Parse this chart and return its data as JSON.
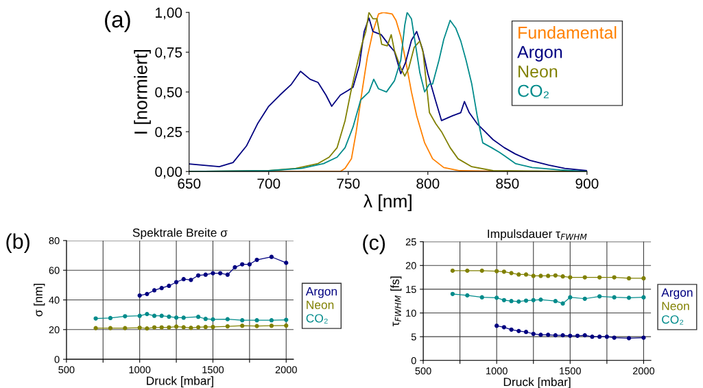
{
  "chart_data": [
    {
      "type": "line",
      "xlabel": "λ [nm]",
      "ylabel": "I [normiert]",
      "annotations": [
        "(a)"
      ],
      "xlim": [
        650,
        900
      ],
      "xticks": [
        650,
        700,
        750,
        800,
        850,
        900
      ],
      "ylim": [
        0,
        1
      ],
      "yticks": [
        {
          "value": 0,
          "label": "0,00"
        },
        {
          "value": 0.25,
          "label": "0,25"
        },
        {
          "value": 0.5,
          "label": "0,50"
        },
        {
          "value": 0.75,
          "label": "0,75"
        },
        {
          "value": 1,
          "label": "1,00"
        }
      ],
      "grid": false,
      "legend": "top right",
      "marker": "none",
      "line_style": "solid",
      "series": [
        {
          "name": "Fundamental",
          "color": "#ff8000",
          "x": [
            650,
            700,
            745,
            748,
            752,
            755,
            758.6,
            762,
            765.5,
            769,
            772,
            777.6,
            780,
            783,
            786,
            789.7,
            793,
            798,
            803,
            810,
            820,
            850,
            900
          ],
          "values": [
            0,
            0,
            0,
            0.02,
            0.08,
            0.25,
            0.5,
            0.72,
            0.88,
            0.99,
            1.0,
            0.99,
            0.95,
            0.85,
            0.7,
            0.5,
            0.35,
            0.18,
            0.08,
            0.025,
            0.005,
            0,
            0
          ]
        },
        {
          "name": "Argon",
          "color": "#000080",
          "x": [
            650,
            669,
            677.6,
            686,
            693,
            700,
            707,
            714,
            720,
            726,
            731,
            736,
            739.6,
            745,
            750,
            753,
            757,
            760,
            763,
            765.5,
            770.7,
            776,
            779,
            783,
            786,
            789.7,
            793,
            796.6,
            800,
            805,
            808.6,
            815.5,
            820.7,
            823,
            826,
            831,
            836,
            841,
            848,
            855,
            864,
            876,
            886,
            900
          ],
          "values": [
            0.047,
            0.03,
            0.056,
            0.16,
            0.3,
            0.41,
            0.48,
            0.545,
            0.63,
            0.58,
            0.56,
            0.48,
            0.41,
            0.48,
            0.51,
            0.53,
            0.67,
            0.88,
            0.965,
            0.88,
            0.86,
            0.79,
            0.755,
            0.615,
            0.685,
            0.825,
            0.88,
            0.77,
            0.615,
            0.44,
            0.32,
            0.35,
            0.37,
            0.44,
            0.37,
            0.3,
            0.25,
            0.2,
            0.15,
            0.11,
            0.07,
            0.04,
            0.02,
            0.005
          ]
        },
        {
          "name": "Neon",
          "color": "#808000",
          "x": [
            650,
            700,
            717,
            731,
            738,
            743,
            748,
            752,
            755,
            758.6,
            761,
            763,
            765.5,
            768,
            771,
            774.5,
            777,
            779,
            783,
            785.5,
            788,
            791.4,
            795,
            797,
            801,
            805,
            808.6,
            814,
            819,
            827.6,
            841,
            900
          ],
          "values": [
            0,
            0.005,
            0.02,
            0.05,
            0.09,
            0.15,
            0.32,
            0.52,
            0.65,
            0.8,
            0.88,
            1.0,
            0.96,
            0.96,
            0.8,
            0.79,
            0.86,
            0.76,
            0.65,
            0.6,
            0.65,
            0.78,
            0.82,
            0.75,
            0.37,
            0.3,
            0.25,
            0.15,
            0.08,
            0.03,
            0.005,
            0
          ]
        },
        {
          "name": "CO₂",
          "color": "#008b8b",
          "x": [
            650,
            700,
            720.7,
            734.5,
            743,
            748,
            753,
            757.8,
            763,
            766,
            769,
            774,
            779,
            783,
            785.5,
            787,
            789.7,
            791.4,
            795,
            798,
            801,
            803,
            807,
            810,
            814,
            817.6,
            820.7,
            824,
            827.6,
            831,
            834.5,
            840,
            845,
            848,
            855,
            865.5,
            883,
            900
          ],
          "values": [
            0,
            0.005,
            0.02,
            0.05,
            0.09,
            0.15,
            0.28,
            0.45,
            0.5,
            0.58,
            0.52,
            0.5,
            0.57,
            0.7,
            0.92,
            1.0,
            0.96,
            0.85,
            0.62,
            0.5,
            0.55,
            0.55,
            0.7,
            0.83,
            0.95,
            0.9,
            0.82,
            0.7,
            0.55,
            0.35,
            0.18,
            0.15,
            0.12,
            0.1,
            0.05,
            0.025,
            0.01,
            0
          ]
        }
      ]
    },
    {
      "type": "line",
      "title": "Spektrale Breite σ",
      "xlabel": "Druck [mbar]",
      "ylabel": "σ [nm]",
      "annotations": [
        "(b)"
      ],
      "xlim": [
        500,
        2050
      ],
      "xticks": [
        500,
        {
          "value": 750,
          "label": null
        },
        1000,
        {
          "value": 1250,
          "label": null
        },
        1500,
        {
          "value": 1750,
          "label": null
        },
        2000
      ],
      "ylim": [
        0,
        80
      ],
      "yticks": [
        0,
        20,
        40,
        60,
        80
      ],
      "grid": true,
      "legend": "right",
      "marker": "circle",
      "line_style": "solid",
      "series": [
        {
          "name": "Argon",
          "color": "#000080",
          "x": [
            1000,
            1050,
            1100,
            1150,
            1200,
            1250,
            1300,
            1350,
            1400,
            1450,
            1500,
            1550,
            1600,
            1650,
            1700,
            1750,
            1800,
            1900,
            2000
          ],
          "values": [
            43,
            44,
            46.5,
            48,
            49.5,
            52,
            54,
            53.5,
            56.5,
            57,
            58,
            58,
            57,
            62,
            64,
            64,
            67,
            69,
            65
          ]
        },
        {
          "name": "Neon",
          "color": "#808000",
          "x": [
            700,
            800,
            900,
            1000,
            1050,
            1100,
            1150,
            1200,
            1250,
            1300,
            1350,
            1400,
            1450,
            1500,
            1600,
            1700,
            1800,
            1900,
            2000
          ],
          "values": [
            21,
            21,
            21,
            21.3,
            20.8,
            21.5,
            21.5,
            21.5,
            22,
            21.6,
            21.2,
            21.6,
            21.8,
            21.8,
            22.2,
            22.6,
            22.4,
            22.6,
            22.7
          ]
        },
        {
          "name": "CO₂",
          "color": "#008b8b",
          "x": [
            700,
            800,
            900,
            1000,
            1050,
            1100,
            1150,
            1200,
            1250,
            1300,
            1400,
            1450,
            1500,
            1600,
            1700,
            1800,
            1900,
            2000
          ],
          "values": [
            27.5,
            27.8,
            29,
            29.3,
            30.5,
            29.3,
            29.3,
            28.7,
            28.1,
            28,
            28.6,
            27.2,
            26.9,
            27,
            26.3,
            26.3,
            26.3,
            26.6
          ]
        }
      ]
    },
    {
      "type": "line",
      "title": "Impulsdauer τ$_{FWHM}$",
      "xlabel": "Druck [mbar]",
      "ylabel": "τ$_{FWHM}$ [fs]",
      "annotations": [
        "(c)"
      ],
      "xlim": [
        500,
        2050
      ],
      "xticks": [
        500,
        {
          "value": 750,
          "label": null
        },
        1000,
        {
          "value": 1250,
          "label": null
        },
        1500,
        {
          "value": 1750,
          "label": null
        },
        2000
      ],
      "ylim": [
        0,
        25
      ],
      "yticks": [
        0,
        5,
        10,
        15,
        20,
        25
      ],
      "grid": true,
      "legend": "right",
      "marker": "circle",
      "line_style": "solid",
      "series": [
        {
          "name": "Argon",
          "color": "#000080",
          "x": [
            1000,
            1050,
            1100,
            1150,
            1200,
            1250,
            1300,
            1350,
            1400,
            1450,
            1500,
            1550,
            1600,
            1650,
            1700,
            1750,
            1800,
            1900,
            2000
          ],
          "values": [
            7.3,
            7.0,
            6.5,
            6.2,
            6.0,
            5.6,
            5.4,
            5.4,
            5.3,
            5.3,
            5.2,
            5.2,
            5.3,
            5.0,
            5.0,
            5.0,
            4.8,
            4.7,
            4.8
          ]
        },
        {
          "name": "Neon",
          "color": "#808000",
          "x": [
            700,
            800,
            900,
            1000,
            1050,
            1100,
            1150,
            1200,
            1250,
            1300,
            1350,
            1400,
            1450,
            1500,
            1600,
            1700,
            1800,
            1900,
            2000
          ],
          "values": [
            18.9,
            18.9,
            18.9,
            18.8,
            18.7,
            18.4,
            18.1,
            18.1,
            17.8,
            17.8,
            17.8,
            17.9,
            17.7,
            17.5,
            17.5,
            17.5,
            17.5,
            17.3,
            17.3
          ]
        },
        {
          "name": "CO₂",
          "color": "#008b8b",
          "x": [
            700,
            800,
            900,
            1000,
            1050,
            1100,
            1150,
            1200,
            1250,
            1300,
            1400,
            1450,
            1500,
            1600,
            1700,
            1800,
            1900,
            2000
          ],
          "values": [
            14.0,
            13.7,
            13.3,
            13.2,
            12.7,
            12.5,
            12.4,
            12.6,
            12.7,
            12.8,
            12.5,
            12.0,
            13.3,
            13.0,
            13.5,
            13.3,
            13.2,
            13.3
          ]
        }
      ]
    }
  ]
}
